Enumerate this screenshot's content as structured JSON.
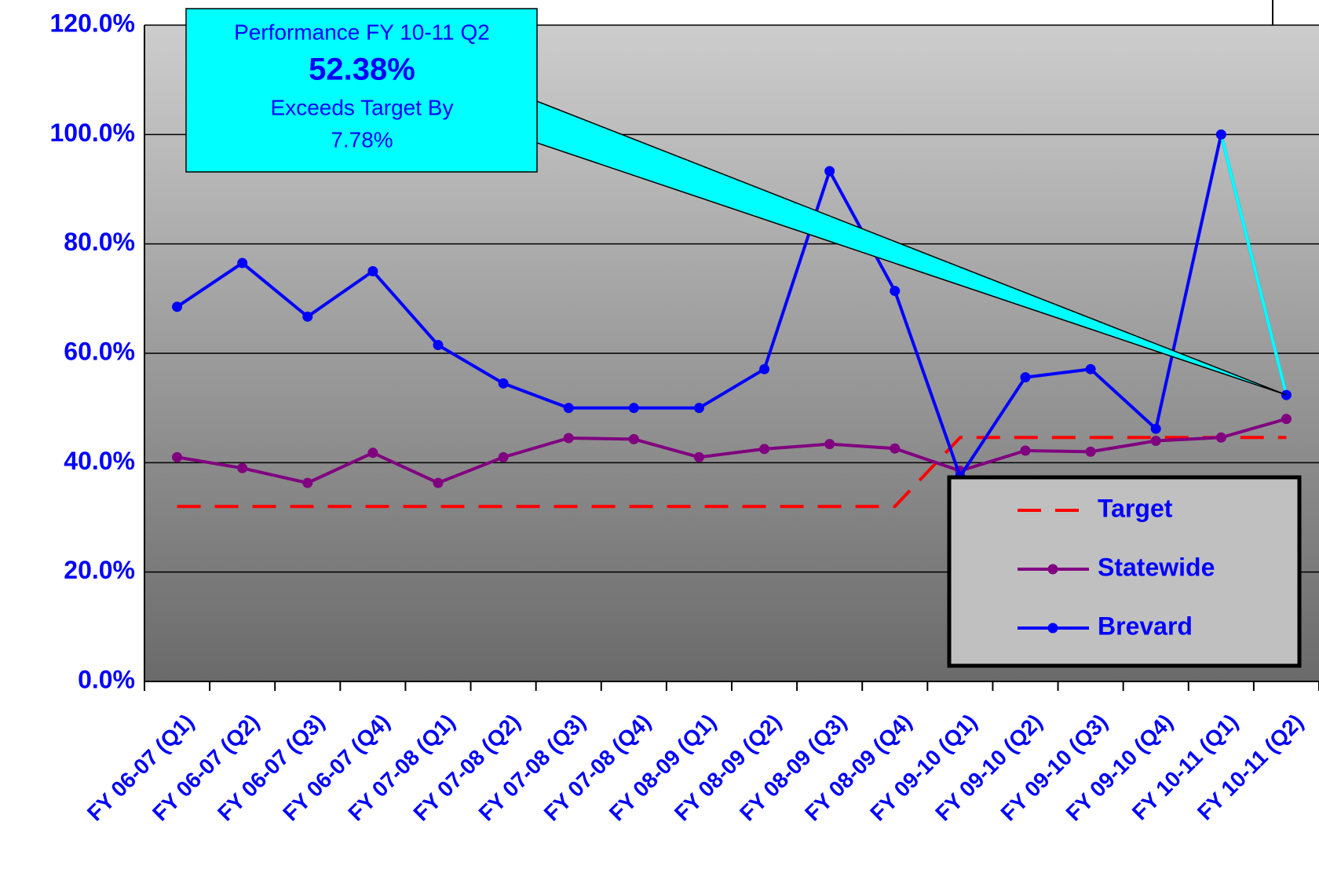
{
  "chart_data": {
    "type": "line",
    "categories": [
      "FY 06-07 (Q1)",
      "FY 06-07 (Q2)",
      "FY 06-07 (Q3)",
      "FY 06-07 (Q4)",
      "FY 07-08 (Q1)",
      "FY 07-08 (Q2)",
      "FY 07-08 (Q3)",
      "FY 07-08 (Q4)",
      "FY 08-09 (Q1)",
      "FY 08-09 (Q2)",
      "FY 08-09 (Q3)",
      "FY 08-09 (Q4)",
      "FY 09-10 (Q1)",
      "FY 09-10 (Q2)",
      "FY 09-10 (Q3)",
      "FY 09-10 (Q4)",
      "FY 10-11 (Q1)",
      "FY 10-11 (Q2)"
    ],
    "series": [
      {
        "name": "Target",
        "color": "#ff0000",
        "dashed": true,
        "markers": false,
        "values": [
          32,
          32,
          32,
          32,
          32,
          32,
          32,
          32,
          32,
          32,
          32,
          32,
          44.6,
          44.6,
          44.6,
          44.6,
          44.6,
          44.6
        ]
      },
      {
        "name": "Statewide",
        "color": "#800080",
        "dashed": false,
        "markers": true,
        "values": [
          41,
          39,
          36.3,
          41.8,
          36.3,
          41,
          44.5,
          44.3,
          41,
          42.5,
          43.4,
          42.6,
          38.5,
          42.2,
          42,
          44,
          44.6,
          48
        ]
      },
      {
        "name": "Brevard",
        "color": "#0000ff",
        "dashed": false,
        "markers": true,
        "values": [
          68.5,
          76.5,
          66.7,
          75,
          61.5,
          54.5,
          50,
          50,
          50,
          57.1,
          93.3,
          71.4,
          37.5,
          55.6,
          57.1,
          46.2,
          100,
          52.38
        ]
      }
    ],
    "ylim": [
      0,
      120
    ],
    "yticks": [
      {
        "value": 0,
        "label": "0.0%"
      },
      {
        "value": 20,
        "label": "20.0%"
      },
      {
        "value": 40,
        "label": "40.0%"
      },
      {
        "value": 60,
        "label": "60.0%"
      },
      {
        "value": 80,
        "label": "80.0%"
      },
      {
        "value": 100,
        "label": "100.0%"
      },
      {
        "value": 120,
        "label": "120.0%"
      }
    ],
    "grid": true,
    "legend": "bottom-right",
    "annotation": {
      "lines": [
        "Performance FY 10-11 Q2",
        "52.38%",
        "Exceeds Target By",
        "7.78%"
      ],
      "color": "#00ffff",
      "highlight_color": "#00ffff"
    }
  }
}
